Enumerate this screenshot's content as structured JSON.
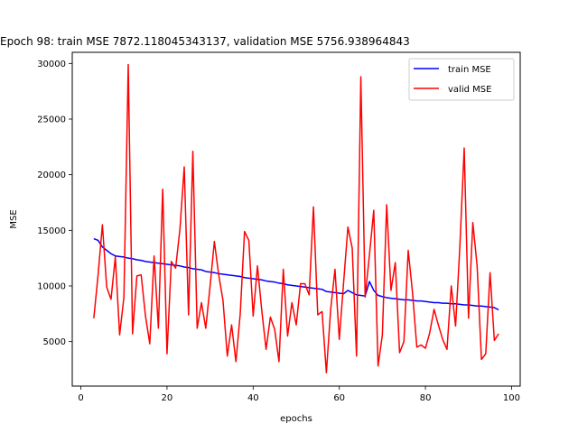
{
  "chart_data": {
    "type": "line",
    "title": "Epoch 98: train MSE 7872.118045343137, validation MSE 5756.938964843",
    "xlabel": "epochs",
    "ylabel": "MSE",
    "xlim": [
      -2,
      102
    ],
    "ylim": [
      1000,
      31000
    ],
    "xticks": [
      0,
      20,
      40,
      60,
      80,
      100
    ],
    "yticks": [
      5000,
      10000,
      15000,
      20000,
      25000,
      30000
    ],
    "grid": false,
    "legend_position": "top-right",
    "series": [
      {
        "name": "train MSE",
        "color": "#0000ff",
        "x": [
          3,
          4,
          5,
          6,
          7,
          8,
          9,
          10,
          11,
          12,
          13,
          14,
          15,
          16,
          17,
          18,
          19,
          20,
          21,
          22,
          23,
          24,
          25,
          26,
          27,
          28,
          29,
          30,
          31,
          32,
          33,
          34,
          35,
          36,
          37,
          38,
          39,
          40,
          41,
          42,
          43,
          44,
          45,
          46,
          47,
          48,
          49,
          50,
          51,
          52,
          53,
          54,
          55,
          56,
          57,
          58,
          59,
          60,
          61,
          62,
          63,
          64,
          65,
          66,
          67,
          68,
          69,
          70,
          71,
          72,
          73,
          74,
          75,
          76,
          77,
          78,
          79,
          80,
          81,
          82,
          83,
          84,
          85,
          86,
          87,
          88,
          89,
          90,
          91,
          92,
          93,
          94,
          95,
          96,
          97
        ],
        "y": [
          14250,
          14100,
          13500,
          13200,
          12900,
          12700,
          12650,
          12600,
          12500,
          12450,
          12350,
          12300,
          12200,
          12150,
          12100,
          12050,
          12000,
          11950,
          11900,
          11850,
          11800,
          11700,
          11650,
          11550,
          11500,
          11450,
          11300,
          11250,
          11200,
          11100,
          11050,
          11000,
          10950,
          10900,
          10850,
          10750,
          10700,
          10650,
          10600,
          10550,
          10450,
          10400,
          10350,
          10250,
          10200,
          10100,
          10050,
          10000,
          9950,
          9900,
          9850,
          9800,
          9750,
          9700,
          9500,
          9450,
          9400,
          9350,
          9300,
          9600,
          9400,
          9200,
          9150,
          9100,
          10400,
          9600,
          9150,
          9050,
          8950,
          8900,
          8850,
          8800,
          8750,
          8750,
          8700,
          8650,
          8650,
          8600,
          8550,
          8500,
          8500,
          8450,
          8450,
          8400,
          8400,
          8350,
          8300,
          8300,
          8250,
          8200,
          8200,
          8150,
          8100,
          8050,
          7850
        ]
      },
      {
        "name": "valid MSE",
        "color": "#ff0000",
        "x": [
          3,
          4,
          5,
          6,
          7,
          8,
          9,
          10,
          11,
          12,
          13,
          14,
          15,
          16,
          17,
          18,
          19,
          20,
          21,
          22,
          23,
          24,
          25,
          26,
          27,
          28,
          29,
          30,
          31,
          32,
          33,
          34,
          35,
          36,
          37,
          38,
          39,
          40,
          41,
          42,
          43,
          44,
          45,
          46,
          47,
          48,
          49,
          50,
          51,
          52,
          53,
          54,
          55,
          56,
          57,
          58,
          59,
          60,
          61,
          62,
          63,
          64,
          65,
          66,
          67,
          68,
          69,
          70,
          71,
          72,
          73,
          74,
          75,
          76,
          77,
          78,
          79,
          80,
          81,
          82,
          83,
          84,
          85,
          86,
          87,
          88,
          89,
          90,
          91,
          92,
          93,
          94,
          95,
          96,
          97
        ],
        "y": [
          7100,
          11000,
          15500,
          9900,
          8800,
          12600,
          5600,
          9000,
          29900,
          5700,
          10900,
          11000,
          7300,
          4800,
          12700,
          6200,
          18700,
          3900,
          12200,
          11600,
          15100,
          20700,
          7400,
          22100,
          6200,
          8500,
          6200,
          10000,
          14000,
          11000,
          8700,
          3700,
          6500,
          3200,
          7500,
          14900,
          14100,
          7300,
          11800,
          7800,
          4300,
          7200,
          6100,
          3200,
          11500,
          5500,
          8500,
          6500,
          10200,
          10200,
          9200,
          17100,
          7400,
          7700,
          2200,
          7900,
          11500,
          5200,
          10300,
          15300,
          13400,
          3700,
          28800,
          9000,
          12800,
          16800,
          2800,
          5600,
          17300,
          9600,
          12100,
          4000,
          5000,
          13200,
          9400,
          4500,
          4700,
          4400,
          5800,
          7900,
          6500,
          5200,
          4300,
          10000,
          6400,
          13600,
          22400,
          7100,
          15700,
          11800,
          3400,
          3900,
          11200,
          5100,
          5700
        ]
      }
    ]
  }
}
